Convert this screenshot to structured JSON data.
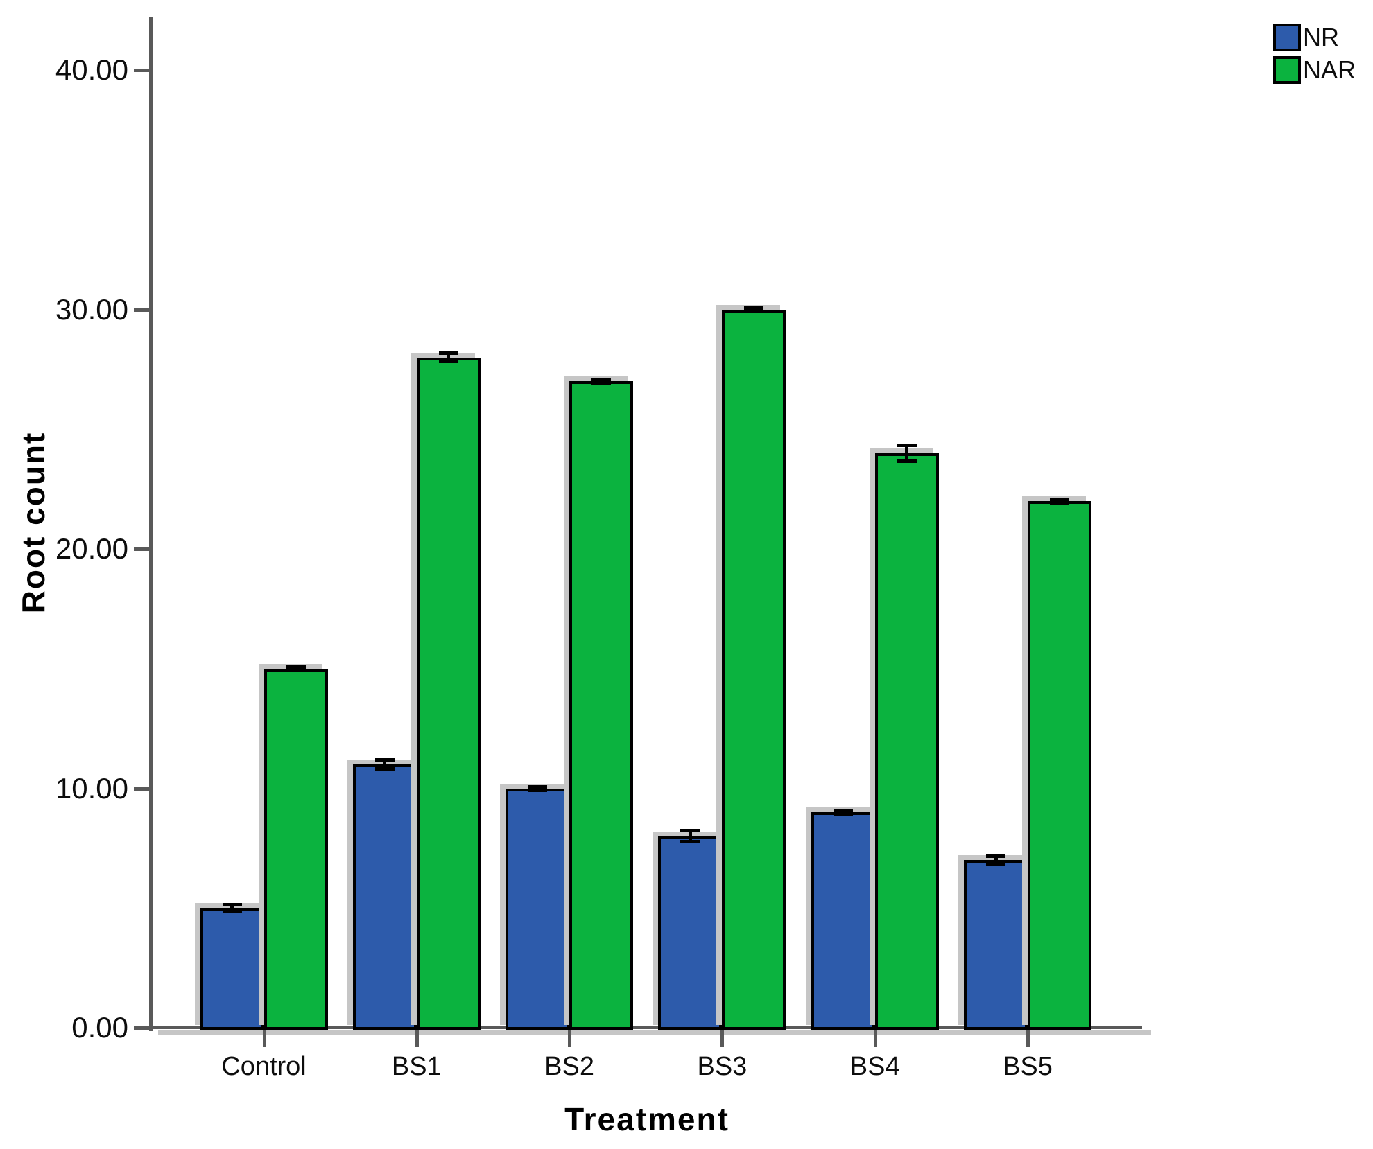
{
  "chart_data": {
    "type": "bar",
    "title": "",
    "xlabel": "Treatment",
    "ylabel": "Root count",
    "categories": [
      "Control",
      "BS1",
      "BS2",
      "BS3",
      "BS4",
      "BS5"
    ],
    "series": [
      {
        "name": "NR",
        "color": "#2D5BAB",
        "values": [
          5,
          11,
          10,
          8,
          9,
          7
        ],
        "errors": [
          0.2,
          0.25,
          0.1,
          0.3,
          0.12,
          0.25
        ]
      },
      {
        "name": "NAR",
        "color": "#0BB33F",
        "values": [
          15,
          28,
          27,
          30,
          24,
          22
        ],
        "errors": [
          0.1,
          0.25,
          0.1,
          0.1,
          0.4,
          0.05
        ]
      }
    ],
    "ylim": [
      0,
      40
    ],
    "yticks": [
      0,
      10,
      20,
      30,
      40
    ],
    "ytick_labels": [
      "0.00",
      "10.00",
      "20.00",
      "30.00",
      "40.00"
    ],
    "legend_position": "top-right",
    "grid": false,
    "error_bars": true,
    "bar_border_color": "#000000",
    "axis_color": "#595959"
  }
}
